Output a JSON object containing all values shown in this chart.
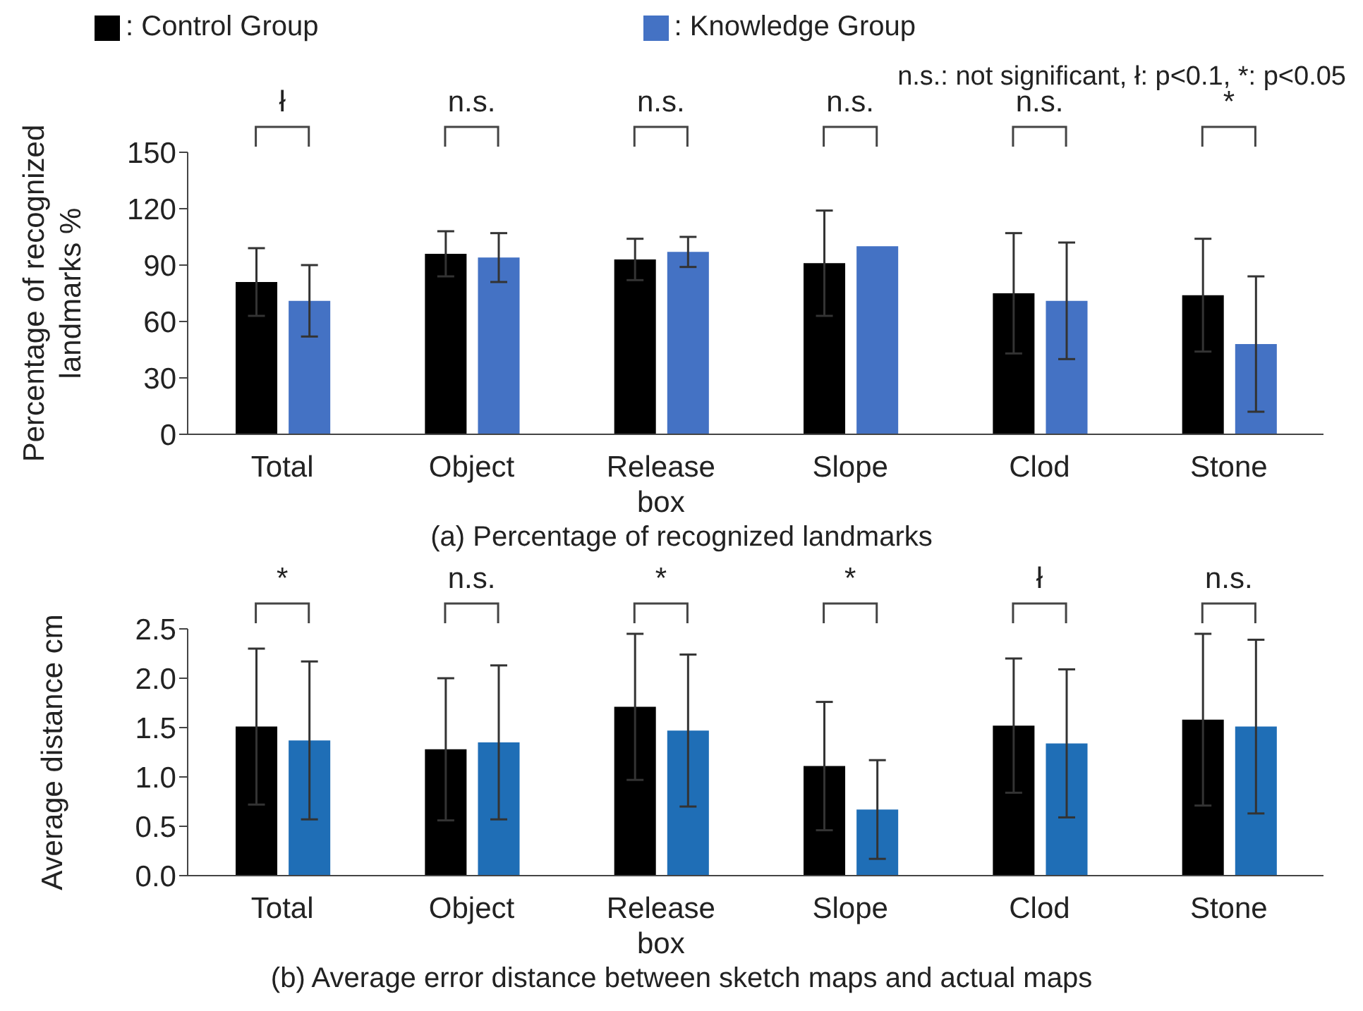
{
  "chart_data": [
    {
      "type": "bar",
      "title": "(a) Percentage of recognized landmarks",
      "ylabel": "Percentage of recognized landmarks %",
      "categories": [
        "Total",
        "Object",
        "Release box",
        "Slope",
        "Clod",
        "Stone"
      ],
      "series": [
        {
          "name": ": Control Group",
          "color": "#000000",
          "values": [
            81,
            96,
            93,
            91,
            75,
            74
          ],
          "errors": [
            18,
            12,
            11,
            28,
            32,
            30
          ]
        },
        {
          "name": ": Knowledge Group",
          "color": "#4472c4",
          "values": [
            71,
            94,
            97,
            100,
            71,
            48
          ],
          "errors": [
            19,
            13,
            8,
            null,
            31,
            36
          ]
        }
      ],
      "ylim": [
        0,
        150
      ],
      "yticks": [
        0,
        30,
        60,
        90,
        120,
        150
      ],
      "grid": false,
      "legend": "top",
      "annotations": [
        "n.s.: not significant, ł: p<0.1, *: p<0.05",
        "ł",
        "n.s.",
        "n.s.",
        "n.s.",
        "n.s.",
        "*"
      ]
    },
    {
      "type": "bar",
      "title": "(b) Average error distance between sketch maps and actual maps",
      "ylabel": "Average distance cm",
      "categories": [
        "Total",
        "Object",
        "Release box",
        "Slope",
        "Clod",
        "Stone"
      ],
      "series": [
        {
          "color": "#000000",
          "values": [
            1.51,
            1.28,
            1.71,
            1.11,
            1.52,
            1.58
          ],
          "errors": [
            0.79,
            0.72,
            0.74,
            0.65,
            0.68,
            0.87
          ]
        },
        {
          "color": "#1f6eb6",
          "values": [
            1.37,
            1.35,
            1.47,
            0.67,
            1.34,
            1.51
          ],
          "errors": [
            0.8,
            0.78,
            0.77,
            0.5,
            0.75,
            0.88
          ]
        }
      ],
      "ylim": [
        0,
        2.5
      ],
      "yticks": [
        {
          "value": 0,
          "label": "0.0"
        },
        {
          "value": 0.5,
          "label": "0.5"
        },
        {
          "value": 1,
          "label": "1.0"
        },
        {
          "value": 1.5,
          "label": "1.5"
        },
        {
          "value": 2,
          "label": "2.0"
        },
        {
          "value": 2.5,
          "label": "2.5"
        }
      ],
      "grid": false,
      "annotations": [
        "*",
        "n.s.",
        "*",
        "*",
        "ł",
        "n.s."
      ]
    }
  ]
}
